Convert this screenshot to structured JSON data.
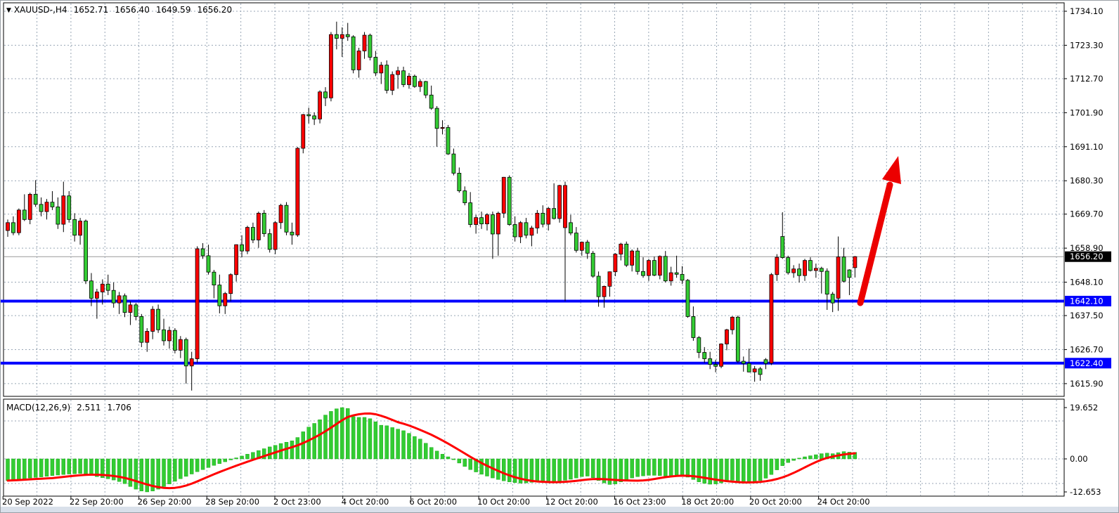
{
  "header": {
    "symbol": "XAUUSD-,H4",
    "open": "1652.71",
    "high": "1656.40",
    "low": "1649.59",
    "close": "1656.20"
  },
  "macd_panel": {
    "label": "MACD(12,26,9)",
    "macd_value": "2.511",
    "signal_value": "1.706"
  },
  "chart_data": {
    "type": "candlestick",
    "title": "XAUUSD-,H4",
    "timeframe": "H4",
    "legend_position": "none",
    "grid": true,
    "ylim": [
      1611.9,
      1736.5
    ],
    "price_axis_ticks": [
      "1734.10",
      "1723.30",
      "1712.70",
      "1701.90",
      "1691.10",
      "1680.30",
      "1669.70",
      "1658.90",
      "1648.10",
      "1637.50",
      "1626.70",
      "1615.90"
    ],
    "price_badges": [
      {
        "text": "1656.20",
        "value": 1656.2,
        "bg": "#000000"
      },
      {
        "text": "1642.10",
        "value": 1642.1,
        "bg": "#0000FE"
      },
      {
        "text": "1622.40",
        "value": 1622.4,
        "bg": "#0000FE"
      }
    ],
    "horizontal_levels": [
      {
        "value": 1656.2,
        "role": "current-price",
        "color": "#9a9a9a",
        "width": 1
      },
      {
        "value": 1642.1,
        "role": "support-resistance",
        "color": "#0000FE",
        "width": 4
      },
      {
        "value": 1622.4,
        "role": "support",
        "color": "#0000FE",
        "width": 4
      }
    ],
    "time_labels": [
      "20 Sep 2022",
      "22 Sep 20:00",
      "26 Sep 20:00",
      "28 Sep 20:00",
      "2 Oct 23:00",
      "4 Oct 20:00",
      "6 Oct 20:00",
      "10 Oct 20:00",
      "12 Oct 20:00",
      "16 Oct 23:00",
      "18 Oct 20:00",
      "20 Oct 20:00",
      "24 Oct 20:00"
    ],
    "candles": [
      [
        1664.5,
        1668.0,
        1662.5,
        1667.0
      ],
      [
        1667.0,
        1669.0,
        1663.0,
        1663.8
      ],
      [
        1663.8,
        1671.5,
        1663.0,
        1671.0
      ],
      [
        1671.0,
        1676.0,
        1667.5,
        1668.0
      ],
      [
        1668.0,
        1676.5,
        1666.5,
        1676.0
      ],
      [
        1676.0,
        1680.5,
        1672.0,
        1672.8
      ],
      [
        1672.8,
        1675.0,
        1669.0,
        1670.5
      ],
      [
        1670.5,
        1674.5,
        1668.0,
        1673.5
      ],
      [
        1673.5,
        1677.0,
        1671.0,
        1672.0
      ],
      [
        1672.0,
        1675.0,
        1665.0,
        1666.5
      ],
      [
        1666.5,
        1680.0,
        1664.0,
        1675.5
      ],
      [
        1675.5,
        1677.0,
        1667.0,
        1668.0
      ],
      [
        1668.0,
        1670.0,
        1661.0,
        1663.0
      ],
      [
        1663.0,
        1668.5,
        1660.0,
        1667.5
      ],
      [
        1667.5,
        1668.0,
        1647.5,
        1648.5
      ],
      [
        1648.5,
        1651.0,
        1640.5,
        1643.0
      ],
      [
        1643.0,
        1646.0,
        1636.5,
        1645.0
      ],
      [
        1645.0,
        1649.0,
        1641.0,
        1647.5
      ],
      [
        1647.5,
        1650.5,
        1644.0,
        1645.5
      ],
      [
        1645.5,
        1648.0,
        1640.0,
        1641.5
      ],
      [
        1641.5,
        1645.0,
        1638.0,
        1643.8
      ],
      [
        1643.8,
        1644.5,
        1637.0,
        1638.5
      ],
      [
        1638.5,
        1642.0,
        1634.5,
        1640.9
      ],
      [
        1640.9,
        1641.5,
        1636.0,
        1637.2
      ],
      [
        1637.2,
        1638.0,
        1627.5,
        1629.0
      ],
      [
        1629.0,
        1633.5,
        1626.0,
        1632.5
      ],
      [
        1632.5,
        1640.5,
        1630.0,
        1639.5
      ],
      [
        1639.5,
        1641.0,
        1632.0,
        1633.0
      ],
      [
        1633.0,
        1636.5,
        1628.0,
        1629.5
      ],
      [
        1629.5,
        1634.0,
        1627.0,
        1632.8
      ],
      [
        1632.8,
        1633.5,
        1625.5,
        1626.5
      ],
      [
        1626.5,
        1631.0,
        1624.0,
        1629.9
      ],
      [
        1629.9,
        1630.5,
        1615.9,
        1621.5
      ],
      [
        1621.5,
        1626.0,
        1613.7,
        1623.8
      ],
      [
        1623.8,
        1659.5,
        1622.5,
        1658.7
      ],
      [
        1658.7,
        1660.5,
        1655.5,
        1656.5
      ],
      [
        1656.5,
        1660.0,
        1650.5,
        1651.3
      ],
      [
        1651.3,
        1652.0,
        1643.0,
        1647.2
      ],
      [
        1647.2,
        1650.5,
        1638.2,
        1640.6
      ],
      [
        1640.6,
        1645.0,
        1638.0,
        1644.5
      ],
      [
        1644.5,
        1650.9,
        1642.0,
        1650.5
      ],
      [
        1650.5,
        1660.1,
        1648.3,
        1660.0
      ],
      [
        1660.0,
        1663.0,
        1656.0,
        1658.0
      ],
      [
        1658.0,
        1666.0,
        1657.0,
        1665.5
      ],
      [
        1665.5,
        1667.0,
        1660.5,
        1661.5
      ],
      [
        1661.5,
        1670.5,
        1659.0,
        1670.0
      ],
      [
        1670.0,
        1671.0,
        1662.5,
        1663.5
      ],
      [
        1663.5,
        1665.0,
        1657.5,
        1658.5
      ],
      [
        1658.5,
        1667.5,
        1657.0,
        1667.0
      ],
      [
        1667.0,
        1673.0,
        1665.0,
        1672.5
      ],
      [
        1672.5,
        1673.5,
        1663.0,
        1664.0
      ],
      [
        1664.0,
        1667.0,
        1660.0,
        1663.1
      ],
      [
        1663.1,
        1691.0,
        1662.5,
        1690.6
      ],
      [
        1690.6,
        1701.5,
        1689.0,
        1701.3
      ],
      [
        1701.3,
        1703.5,
        1698.5,
        1700.9
      ],
      [
        1700.9,
        1702.0,
        1698.0,
        1699.9
      ],
      [
        1699.9,
        1709.0,
        1698.5,
        1708.5
      ],
      [
        1708.5,
        1710.0,
        1704.0,
        1706.6
      ],
      [
        1706.6,
        1727.5,
        1705.5,
        1726.7
      ],
      [
        1726.7,
        1730.8,
        1722.0,
        1725.5
      ],
      [
        1725.5,
        1729.0,
        1719.6,
        1726.7
      ],
      [
        1726.7,
        1730.4,
        1724.7,
        1726.0
      ],
      [
        1726.0,
        1726.5,
        1714.4,
        1715.5
      ],
      [
        1715.5,
        1722.5,
        1713.0,
        1721.5
      ],
      [
        1721.5,
        1727.5,
        1719.0,
        1726.5
      ],
      [
        1726.5,
        1727.0,
        1718.5,
        1719.5
      ],
      [
        1719.5,
        1721.5,
        1713.5,
        1714.5
      ],
      [
        1714.5,
        1718.0,
        1711.0,
        1717.0
      ],
      [
        1717.0,
        1718.5,
        1708.0,
        1709.0
      ],
      [
        1709.0,
        1715.0,
        1707.5,
        1714.0
      ],
      [
        1714.0,
        1716.5,
        1709.5,
        1715.2
      ],
      [
        1715.2,
        1716.5,
        1710.0,
        1710.8
      ],
      [
        1710.8,
        1714.5,
        1709.5,
        1713.5
      ],
      [
        1713.5,
        1714.0,
        1709.8,
        1710.2
      ],
      [
        1710.2,
        1712.5,
        1708.5,
        1711.8
      ],
      [
        1711.8,
        1712.0,
        1706.5,
        1707.5
      ],
      [
        1707.5,
        1710.5,
        1702.8,
        1703.3
      ],
      [
        1703.3,
        1704.0,
        1691.1,
        1696.9
      ],
      [
        1696.9,
        1699.5,
        1695.0,
        1697.2
      ],
      [
        1697.2,
        1698.0,
        1688.5,
        1688.8
      ],
      [
        1688.8,
        1690.5,
        1682.0,
        1682.7
      ],
      [
        1682.7,
        1684.5,
        1676.5,
        1677.1
      ],
      [
        1677.1,
        1678.5,
        1672.5,
        1673.3
      ],
      [
        1673.3,
        1676.7,
        1665.5,
        1666.4
      ],
      [
        1666.4,
        1669.5,
        1663.5,
        1668.6
      ],
      [
        1668.6,
        1670.5,
        1665.0,
        1666.6
      ],
      [
        1666.6,
        1670.0,
        1664.5,
        1669.5
      ],
      [
        1669.5,
        1670.5,
        1655.5,
        1663.4
      ],
      [
        1663.4,
        1670.5,
        1656.5,
        1670.0
      ],
      [
        1670.0,
        1681.5,
        1668.5,
        1681.4
      ],
      [
        1681.4,
        1682.0,
        1666.0,
        1666.4
      ],
      [
        1666.4,
        1669.0,
        1661.0,
        1662.5
      ],
      [
        1662.5,
        1667.5,
        1660.5,
        1667.0
      ],
      [
        1667.0,
        1668.5,
        1662.0,
        1663.0
      ],
      [
        1663.0,
        1666.0,
        1659.5,
        1665.3
      ],
      [
        1665.3,
        1671.0,
        1663.5,
        1670.0
      ],
      [
        1670.0,
        1672.5,
        1665.5,
        1666.5
      ],
      [
        1666.5,
        1672.0,
        1664.5,
        1671.5
      ],
      [
        1671.5,
        1679.5,
        1668.0,
        1668.3
      ],
      [
        1668.3,
        1679.0,
        1667.0,
        1678.8
      ],
      [
        1665.4,
        1680.0,
        1642.1,
        1678.8
      ],
      [
        1667.0,
        1669.5,
        1663.0,
        1663.7
      ],
      [
        1663.7,
        1665.6,
        1657.5,
        1658.2
      ],
      [
        1658.2,
        1661.0,
        1656.5,
        1660.8
      ],
      [
        1660.8,
        1661.5,
        1655.5,
        1657.3
      ],
      [
        1657.3,
        1658.0,
        1649.5,
        1650.0
      ],
      [
        1650.0,
        1651.5,
        1640.3,
        1643.5
      ],
      [
        1643.5,
        1647.0,
        1640.0,
        1646.8
      ],
      [
        1646.8,
        1651.5,
        1643.5,
        1651.4
      ],
      [
        1651.4,
        1657.3,
        1650.0,
        1657.0
      ],
      [
        1657.0,
        1660.6,
        1655.0,
        1660.2
      ],
      [
        1660.2,
        1661.0,
        1652.9,
        1653.5
      ],
      [
        1653.5,
        1658.5,
        1651.5,
        1658.0
      ],
      [
        1658.0,
        1659.0,
        1650.5,
        1651.5
      ],
      [
        1651.5,
        1656.0,
        1649.5,
        1650.2
      ],
      [
        1650.2,
        1655.5,
        1648.5,
        1655.0
      ],
      [
        1655.0,
        1656.2,
        1650.0,
        1650.3
      ],
      [
        1650.3,
        1656.6,
        1649.0,
        1656.3
      ],
      [
        1656.3,
        1658.0,
        1648.0,
        1648.5
      ],
      [
        1648.5,
        1653.0,
        1647.0,
        1651.1
      ],
      [
        1651.1,
        1656.5,
        1649.5,
        1650.6
      ],
      [
        1650.6,
        1653.2,
        1647.5,
        1648.7
      ],
      [
        1648.7,
        1649.1,
        1636.8,
        1637.2
      ],
      [
        1637.2,
        1640.4,
        1629.5,
        1630.5
      ],
      [
        1630.5,
        1631.0,
        1624.0,
        1625.8
      ],
      [
        1625.8,
        1627.5,
        1622.5,
        1623.8
      ],
      [
        1623.8,
        1626.0,
        1620.5,
        1622.0
      ],
      [
        1622.0,
        1623.5,
        1619.5,
        1621.4
      ],
      [
        1621.4,
        1628.7,
        1620.8,
        1628.5
      ],
      [
        1628.5,
        1633.3,
        1626.5,
        1633.0
      ],
      [
        1633.0,
        1637.3,
        1631.5,
        1637.0
      ],
      [
        1637.0,
        1637.5,
        1622.5,
        1623.0
      ],
      [
        1623.0,
        1624.5,
        1619.7,
        1622.3
      ],
      [
        1622.3,
        1627.0,
        1619.5,
        1619.6
      ],
      [
        1619.6,
        1621.5,
        1616.5,
        1620.6
      ],
      [
        1620.6,
        1621.2,
        1616.8,
        1618.8
      ],
      [
        1623.5,
        1624.0,
        1620.5,
        1622.3
      ],
      [
        1622.4,
        1651.0,
        1621.8,
        1650.5
      ],
      [
        1650.5,
        1657.0,
        1648.5,
        1656.0
      ],
      [
        1662.6,
        1670.3,
        1655.5,
        1655.9
      ],
      [
        1655.9,
        1656.5,
        1650.5,
        1651.1
      ],
      [
        1651.1,
        1653.5,
        1649.5,
        1652.3
      ],
      [
        1652.3,
        1654.0,
        1648.0,
        1650.2
      ],
      [
        1650.2,
        1655.5,
        1648.5,
        1655.0
      ],
      [
        1655.0,
        1656.0,
        1651.5,
        1651.8
      ],
      [
        1651.8,
        1654.0,
        1649.5,
        1652.5
      ],
      [
        1652.5,
        1653.0,
        1644.5,
        1651.5
      ],
      [
        1651.6,
        1652.5,
        1639.3,
        1644.3
      ],
      [
        1644.3,
        1645.0,
        1638.6,
        1641.5
      ],
      [
        1643.0,
        1662.6,
        1639.0,
        1656.1
      ],
      [
        1656.1,
        1659.0,
        1648.0,
        1648.4
      ],
      [
        1652.0,
        1652.2,
        1644.0,
        1649.6
      ],
      [
        1652.71,
        1656.4,
        1649.59,
        1656.2
      ]
    ],
    "macd": {
      "params": [
        12,
        26,
        9
      ],
      "label": "MACD(12,26,9)",
      "macd_value": 2.511,
      "signal_value": 1.706,
      "axis_ticks": [
        "19.652",
        "0.00",
        "-12.653"
      ],
      "axis_tick_values": [
        19.652,
        0.0,
        -12.653
      ],
      "signal_period": 9,
      "histogram": [
        -8.3,
        -8.1,
        -7.9,
        -7.6,
        -7.3,
        -7.1,
        -6.9,
        -6.7,
        -6.4,
        -6.2,
        -6.0,
        -5.8,
        -5.7,
        -5.6,
        -5.8,
        -6.3,
        -6.8,
        -7.2,
        -7.6,
        -8.1,
        -8.7,
        -9.5,
        -10.6,
        -11.6,
        -12.3,
        -12.65,
        -12.3,
        -11.6,
        -10.6,
        -9.6,
        -8.6,
        -7.6,
        -6.7,
        -5.8,
        -4.9,
        -4.1,
        -3.3,
        -2.5,
        -1.8,
        -1.1,
        -0.4,
        0.4,
        1.1,
        1.8,
        2.5,
        3.2,
        3.9,
        4.6,
        5.2,
        5.9,
        6.4,
        6.9,
        8.2,
        10.4,
        12.2,
        13.6,
        15.0,
        16.8,
        18.2,
        19.2,
        19.652,
        19.3,
        16.2,
        15.9,
        15.9,
        15.4,
        14.2,
        12.9,
        12.7,
        12.0,
        11.4,
        10.8,
        9.8,
        8.6,
        7.6,
        6.0,
        4.4,
        3.0,
        1.8,
        0.8,
        -0.3,
        -1.6,
        -2.9,
        -4.1,
        -5.0,
        -5.9,
        -6.6,
        -7.3,
        -7.9,
        -8.4,
        -8.8,
        -9.1,
        -9.3,
        -9.2,
        -9.0,
        -8.8,
        -8.7,
        -8.6,
        -8.7,
        -8.5,
        -8.2,
        -7.8,
        -7.3,
        -6.8,
        -6.6,
        -7.2,
        -8.3,
        -9.2,
        -9.8,
        -9.6,
        -8.8,
        -8.0,
        -7.3,
        -6.8,
        -6.5,
        -6.3,
        -6.3,
        -6.4,
        -6.6,
        -6.5,
        -6.2,
        -6.4,
        -7.0,
        -7.9,
        -8.8,
        -9.4,
        -9.7,
        -9.6,
        -9.2,
        -8.7,
        -8.2,
        -8.6,
        -8.9,
        -9.0,
        -8.8,
        -8.3,
        -7.4,
        -6.0,
        -4.2,
        -2.6,
        -1.4,
        -0.6,
        0.3,
        0.8,
        1.2,
        1.6,
        2.0,
        2.2,
        2.0,
        2.4,
        2.8,
        2.6,
        2.511
      ]
    },
    "annotation": {
      "type": "arrow-up",
      "color": "#EC0000",
      "from_price": 1642.1,
      "to_price": 1688.0
    },
    "colors": {
      "background": "#FFFFFF",
      "bull_candle": "#FF0000",
      "bear_candle": "#33CC33",
      "candle_outline": "#000000",
      "histogram": "#33CC33",
      "signal_line": "#FF0000",
      "grid": "#98A6B5",
      "level_blue": "#0000FE",
      "current_price_line": "#9a9a9a",
      "axis_text": "#000000"
    }
  }
}
